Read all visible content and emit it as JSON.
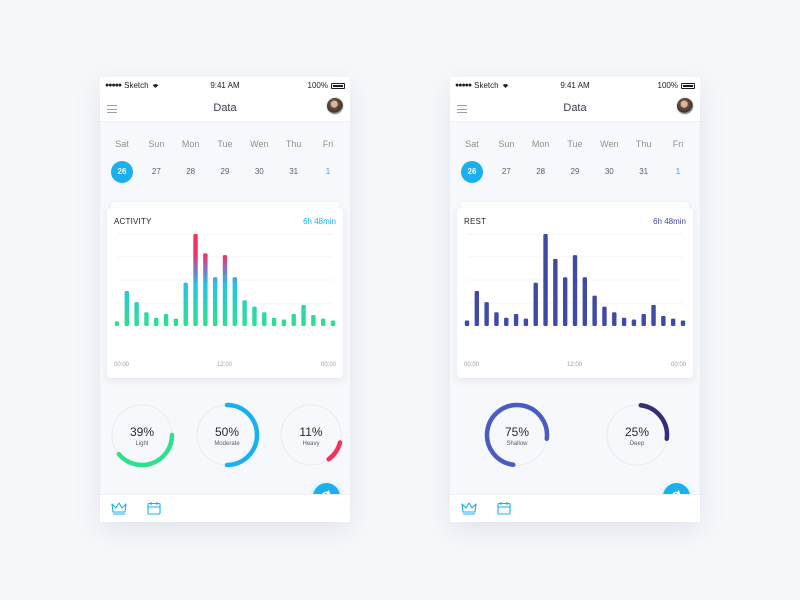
{
  "colors": {
    "accent": "#1ab0f0",
    "activity_start": "#2fe08a",
    "activity_mid": "#24c4e6",
    "activity_high": "#f2325e",
    "rest": "#3f4aa5",
    "rest_deep": "#332d7a",
    "grid": "#eceef2"
  },
  "status_bar": {
    "carrier": "Sketch",
    "time": "9:41 AM",
    "battery": "100%"
  },
  "nav": {
    "title": "Data"
  },
  "week": {
    "days": [
      "Sat",
      "Sun",
      "Mon",
      "Tue",
      "Wen",
      "Thu",
      "Fri"
    ],
    "dates": [
      "26",
      "27",
      "28",
      "29",
      "30",
      "31",
      "1"
    ],
    "selected_index": 0
  },
  "screens": [
    {
      "card_title": "ACTIVITY",
      "card_value": "6h 48min",
      "value_color": "#1ab0f0",
      "axis": [
        "00:00",
        "12:00",
        "00:00"
      ],
      "rings": [
        {
          "pct": "39%",
          "label": "Light",
          "fraction": 0.39,
          "color": "#2fe08a",
          "offset": 0.25
        },
        {
          "pct": "50%",
          "label": "Moderate",
          "fraction": 0.5,
          "color": "#1ab0f0",
          "offset": 0.0
        },
        {
          "pct": "11%",
          "label": "Heavy",
          "fraction": 0.11,
          "color": "#f2325e",
          "offset": 0.29
        }
      ]
    },
    {
      "card_title": "REST",
      "card_value": "6h 48min",
      "value_color": "#3f4aa5",
      "axis": [
        "00:00",
        "12:00",
        "00:00"
      ],
      "rings": [
        {
          "pct": "75%",
          "label": "Shallow",
          "fraction": 0.75,
          "color": "#4a5cc2",
          "offset": 0.52
        },
        {
          "pct": "25%",
          "label": "Deep",
          "fraction": 0.25,
          "color": "#332d7a",
          "offset": 0.02
        }
      ]
    }
  ],
  "chart_data": [
    {
      "type": "bar",
      "title": "ACTIVITY",
      "xlabel": "",
      "ylabel": "",
      "x_ticks": [
        "00:00",
        "12:00",
        "00:00"
      ],
      "ylim": [
        0,
        100
      ],
      "values": [
        5,
        38,
        26,
        15,
        9,
        13,
        8,
        47,
        100,
        79,
        53,
        77,
        53,
        28,
        21,
        15,
        9,
        7,
        13,
        23,
        12,
        8,
        6
      ],
      "grid": true
    },
    {
      "type": "bar",
      "title": "REST",
      "xlabel": "",
      "ylabel": "",
      "x_ticks": [
        "00:00",
        "12:00",
        "00:00"
      ],
      "ylim": [
        0,
        100
      ],
      "values": [
        6,
        38,
        26,
        15,
        9,
        13,
        8,
        47,
        100,
        73,
        53,
        77,
        53,
        33,
        21,
        15,
        9,
        7,
        13,
        23,
        11,
        8,
        6
      ],
      "grid": true
    }
  ]
}
